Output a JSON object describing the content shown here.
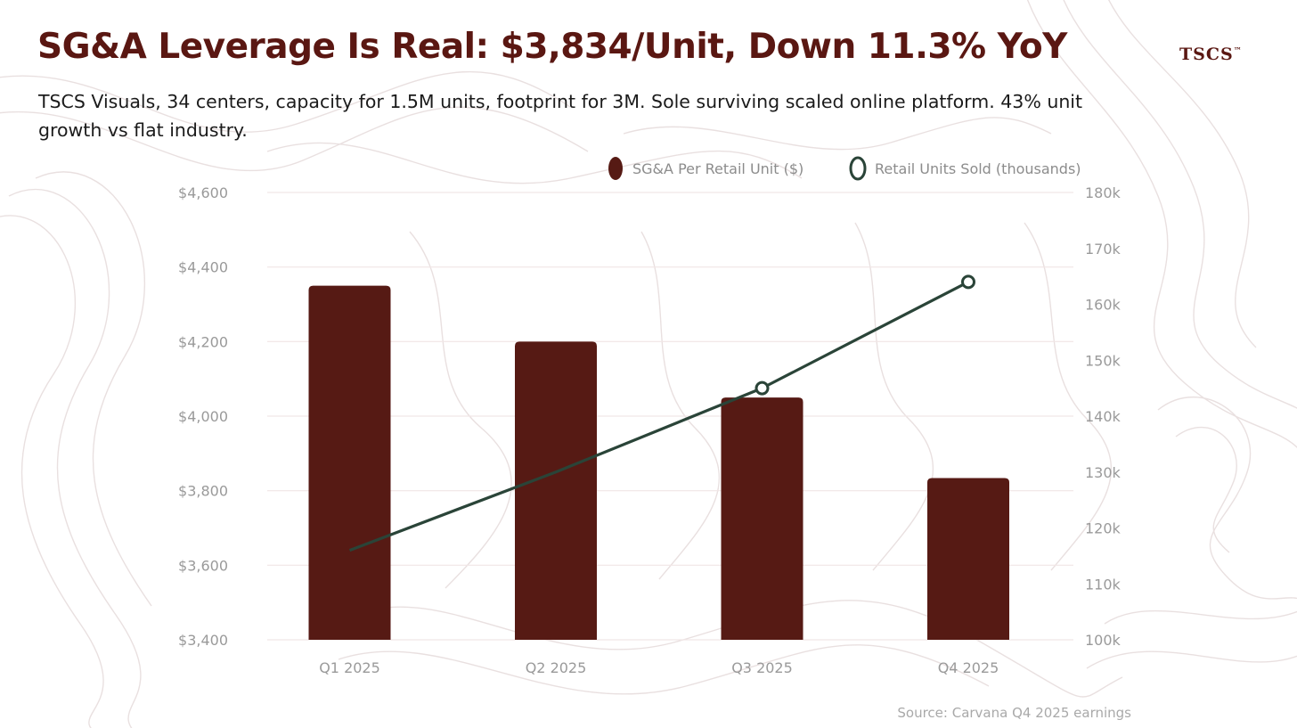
{
  "header": {
    "title": "SG&A Leverage Is Real: $3,834/Unit, Down 11.3% YoY",
    "brand": "TSCS",
    "brand_mark": "™",
    "subtitle": "TSCS Visuals, 34 centers, capacity for 1.5M units, footprint for 3M. Sole surviving scaled online platform. 43% unit growth vs flat industry."
  },
  "colors": {
    "bar": "#561a14",
    "line": "#2a4438",
    "grid": "#f1e6e6",
    "title": "#5a1712"
  },
  "chart_data": {
    "type": "bar",
    "categories": [
      "Q1 2025",
      "Q2 2025",
      "Q3 2025",
      "Q4 2025"
    ],
    "series": [
      {
        "name": "SG&A Per Retail Unit ($)",
        "type": "bar",
        "axis": "left",
        "values": [
          4350,
          4200,
          4050,
          3834
        ]
      },
      {
        "name": "Retail Units Sold (thousands)",
        "type": "line",
        "axis": "right",
        "values": [
          116,
          130,
          145,
          164
        ]
      }
    ],
    "y_left": {
      "min": 3400,
      "max": 4600,
      "ticks": [
        3400,
        3600,
        3800,
        4000,
        4200,
        4400,
        4600
      ],
      "tick_labels": [
        "$3,400",
        "$3,600",
        "$3,800",
        "$4,000",
        "$4,200",
        "$4,400",
        "$4,600"
      ]
    },
    "y_right": {
      "min": 100,
      "max": 180,
      "ticks": [
        100,
        110,
        120,
        130,
        140,
        150,
        160,
        170,
        180
      ],
      "tick_labels": [
        "100k",
        "110k",
        "120k",
        "130k",
        "140k",
        "150k",
        "160k",
        "170k",
        "180k"
      ]
    },
    "legend": {
      "position": "top-right",
      "entries": [
        "SG&A Per Retail Unit ($)",
        "Retail Units Sold (thousands)"
      ]
    },
    "grid": true,
    "source": "Source: Carvana Q4 2025 earnings"
  }
}
